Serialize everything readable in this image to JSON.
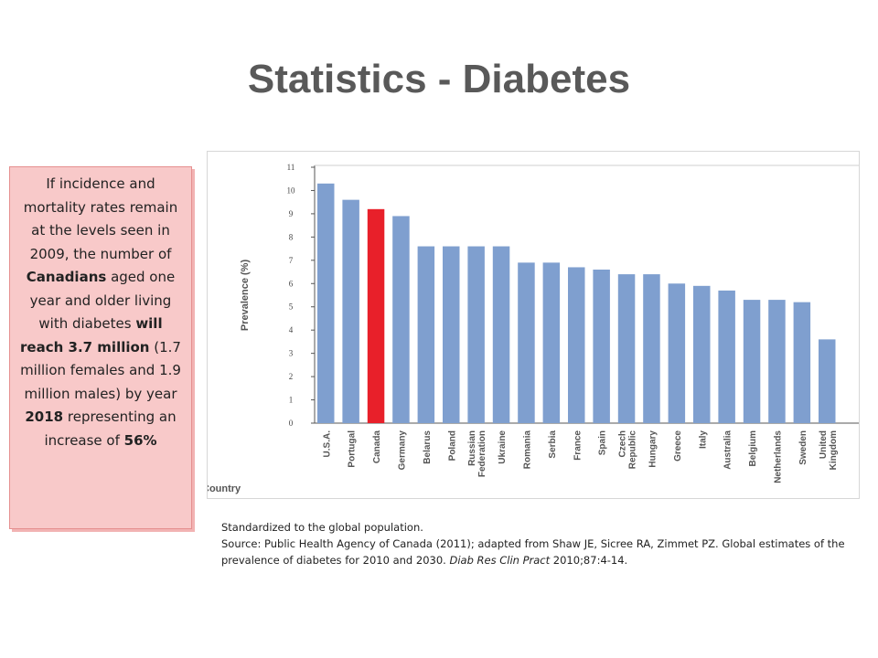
{
  "title": "Statistics - Diabetes",
  "callout": {
    "p1": "If incidence and mortality rates remain at the levels seen in 2009, the number of ",
    "b1": "Canadians",
    "p2": " aged one year and older living with diabetes ",
    "b2": "will reach 3.7 million",
    "p3": " (1.7 million females and 1.9 million males) by year ",
    "b3": "2018",
    "p4": " representing an increase of ",
    "b4": "56%"
  },
  "source": {
    "line1": "Standardized to the global population.",
    "line2a": "Source: Public Health Agency of Canada (2011); adapted from Shaw JE, Sicree RA, Zimmet PZ. Global estimates of the prevalence of diabetes for 2010 and 2030. ",
    "journal": "Diab Res Clin Pract",
    "line2b": " 2010;87:4-14."
  },
  "chart_data": {
    "type": "bar",
    "ylabel": "Prevalence (%)",
    "xlabel": "Country",
    "ylim": [
      0,
      11
    ],
    "yticks": [
      "0",
      "1",
      "2",
      "3",
      "4",
      "5",
      "6",
      "7",
      "8",
      "9",
      "10",
      "11"
    ],
    "grid": false,
    "categories": [
      "U.S.A.",
      "Portugal",
      "Canada",
      "Germany",
      "Belarus",
      "Poland",
      "Russian Federation",
      "Ukraine",
      "Romania",
      "Serbia",
      "France",
      "Spain",
      "Czech Republic",
      "Hungary",
      "Greece",
      "Italy",
      "Australia",
      "Belgium",
      "Netherlands",
      "Sweden",
      "United Kingdom"
    ],
    "values": [
      10.3,
      9.6,
      9.2,
      8.9,
      7.6,
      7.6,
      7.6,
      7.6,
      6.9,
      6.9,
      6.7,
      6.6,
      6.4,
      6.4,
      6.0,
      5.9,
      5.7,
      5.3,
      5.3,
      5.2,
      3.6
    ],
    "highlight": "Canada",
    "colors": {
      "bar": "#7f9fcf",
      "highlight": "#e8202a"
    }
  }
}
